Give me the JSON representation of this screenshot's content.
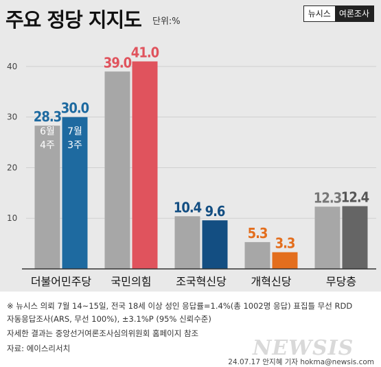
{
  "header": {
    "title": "주요 정당 지지도",
    "unit": "단위:%",
    "brand_left": "뉴시스",
    "brand_right": "여론조사"
  },
  "chart_data": {
    "type": "bar",
    "categories": [
      "더불어민주당",
      "국민의힘",
      "조국혁신당",
      "개혁신당",
      "무당층"
    ],
    "series": [
      {
        "name": "6월 4주",
        "values": [
          28.3,
          39.0,
          10.4,
          5.3,
          12.3
        ]
      },
      {
        "name": "7월 3주",
        "values": [
          30.0,
          41.0,
          9.6,
          3.3,
          12.4
        ]
      }
    ],
    "value_labels": [
      [
        "28.3",
        "39.0",
        "10.4",
        "5.3",
        "12.3"
      ],
      [
        "30.0",
        "41.0",
        "9.6",
        "3.3",
        "12.4"
      ]
    ],
    "in_bar_labels": [
      [
        "6월",
        "4주"
      ],
      [
        "7월",
        "3주"
      ]
    ],
    "yticks": [
      10,
      20,
      30,
      40
    ],
    "ylim": [
      0,
      45
    ],
    "grid": true,
    "colors": {
      "first_series": "#a7a7a7",
      "second_series": [
        "#1e6aa0",
        "#e0535d",
        "#134e82",
        "#e36e1d",
        "#656565"
      ],
      "label_first": [
        "#1e6aa0",
        "#e0535d",
        "#134e82",
        "#e36e1d",
        "#777777"
      ],
      "label_second": [
        "#1e6aa0",
        "#e0535d",
        "#134e82",
        "#e36e1d",
        "#555555"
      ],
      "axis": "#333333",
      "grid": "#cfcfcf"
    }
  },
  "footer": {
    "note1": "※ 뉴시스 의뢰 7월 14~15일, 전국 18세 이상 성인 응답률=1.4%(총 1002명 응답) 표집틀 무선 RDD",
    "note2": "자동응답조사(ARS, 무선 100%), ±3.1%P (95% 신뢰수준)",
    "note3": "자세한 결과는 중앙선거여론조사심의위원회 홈페이지 참조",
    "source": "자료: 에이스리서치",
    "credit": "24.07.17 안지혜 기자 hokma@newsis.com",
    "watermark": "NEWSIS"
  }
}
